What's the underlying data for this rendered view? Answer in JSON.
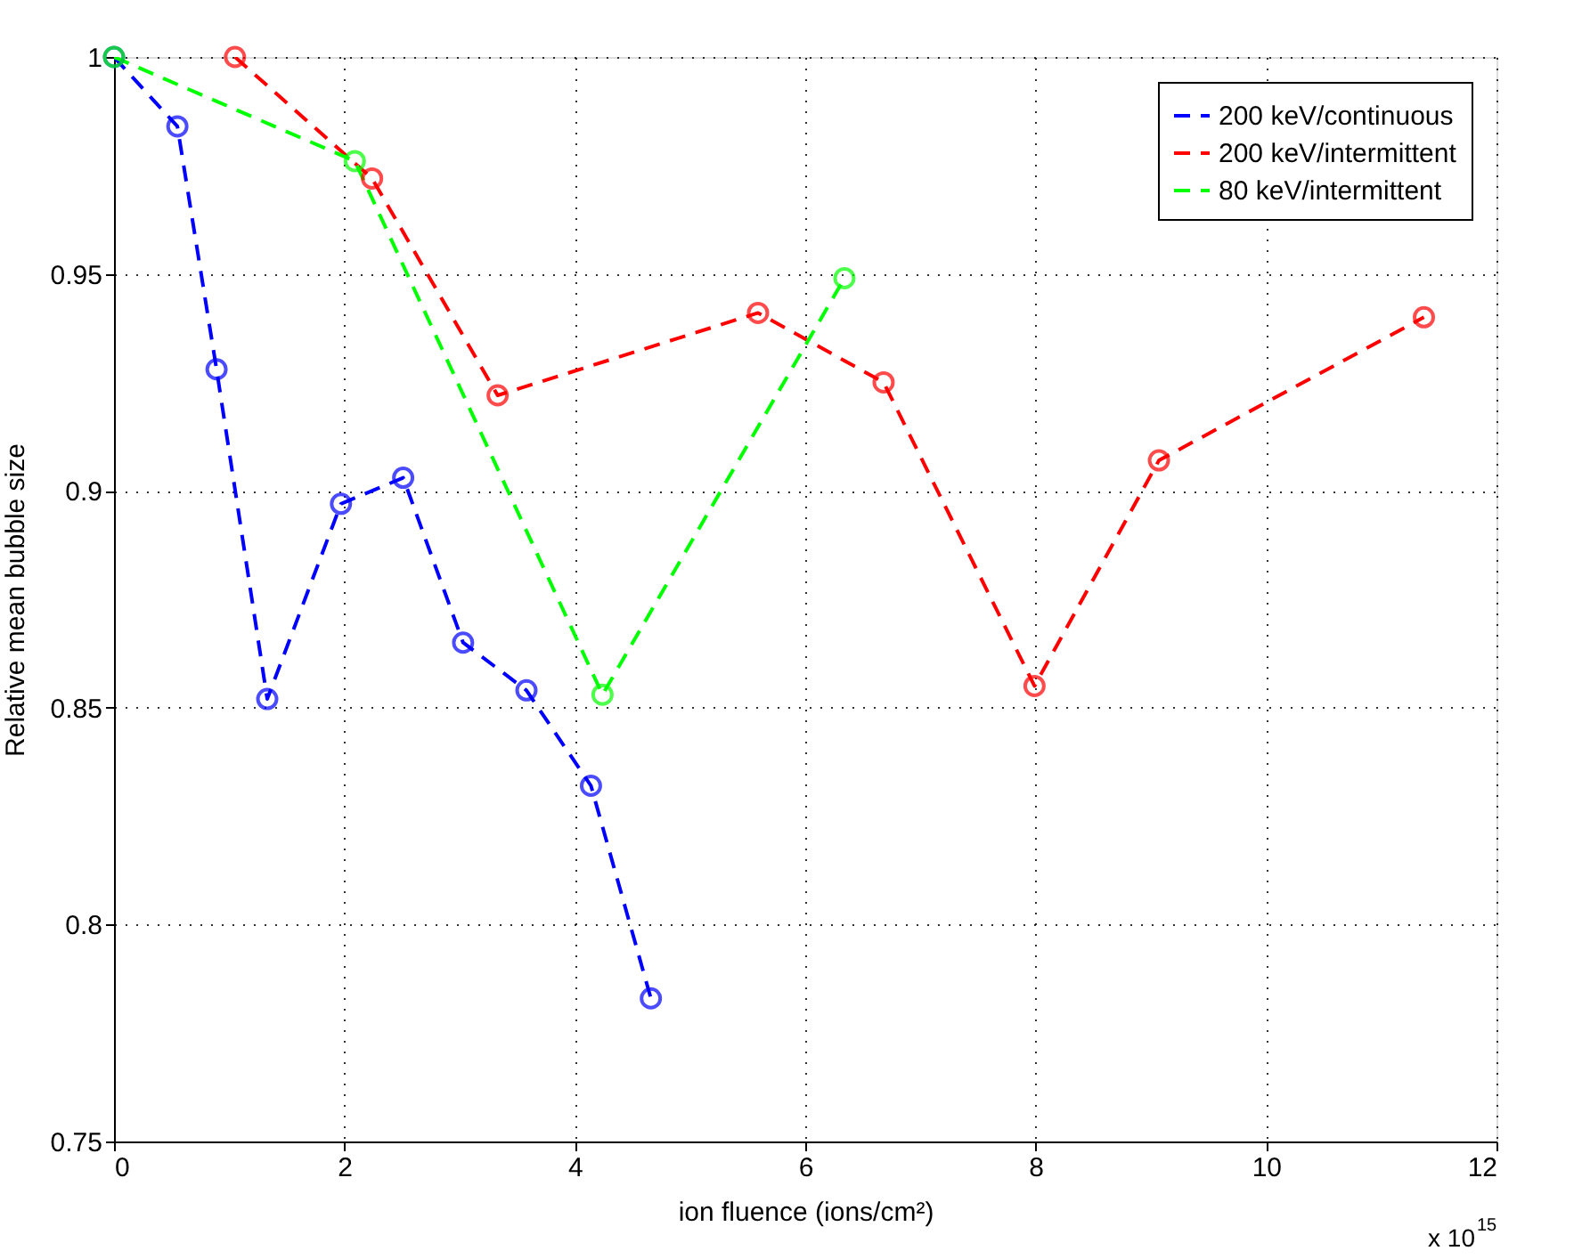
{
  "chart_data": {
    "type": "line",
    "xlabel": "ion fluence (ions/cm²)",
    "ylabel": "Relative mean bubble size",
    "annotations": [
      "x 10$^{15}$"
    ],
    "xlim": [
      0,
      12
    ],
    "xticks": [
      0,
      2,
      4,
      6,
      8,
      10,
      12
    ],
    "ylim": [
      0.75,
      1
    ],
    "yticks": [
      0.75,
      0.8,
      0.85,
      0.9,
      0.95,
      1
    ],
    "grid": true,
    "legend": "top right",
    "marker": "circle",
    "line_style": "dashed",
    "series": [
      {
        "name": "200 keV/continuous",
        "color": "#0000ff",
        "x": [
          0,
          0.55,
          0.89,
          1.33,
          1.97,
          2.51,
          3.03,
          3.58,
          4.14,
          4.66
        ],
        "values": [
          1.0,
          0.984,
          0.928,
          0.852,
          0.897,
          0.903,
          0.865,
          0.854,
          0.832,
          0.783
        ]
      },
      {
        "name": "200 keV/intermittent",
        "color": "#ff0000",
        "x": [
          1.05,
          2.24,
          3.33,
          5.59,
          6.68,
          7.99,
          9.07,
          11.37
        ],
        "values": [
          1.0,
          0.972,
          0.922,
          0.941,
          0.925,
          0.855,
          0.907,
          0.94
        ]
      },
      {
        "name": "80 keV/intermittent",
        "color": "#00ff00",
        "x": [
          0,
          2.09,
          4.24,
          6.34
        ],
        "values": [
          1.0,
          0.976,
          0.853,
          0.949
        ]
      }
    ]
  }
}
